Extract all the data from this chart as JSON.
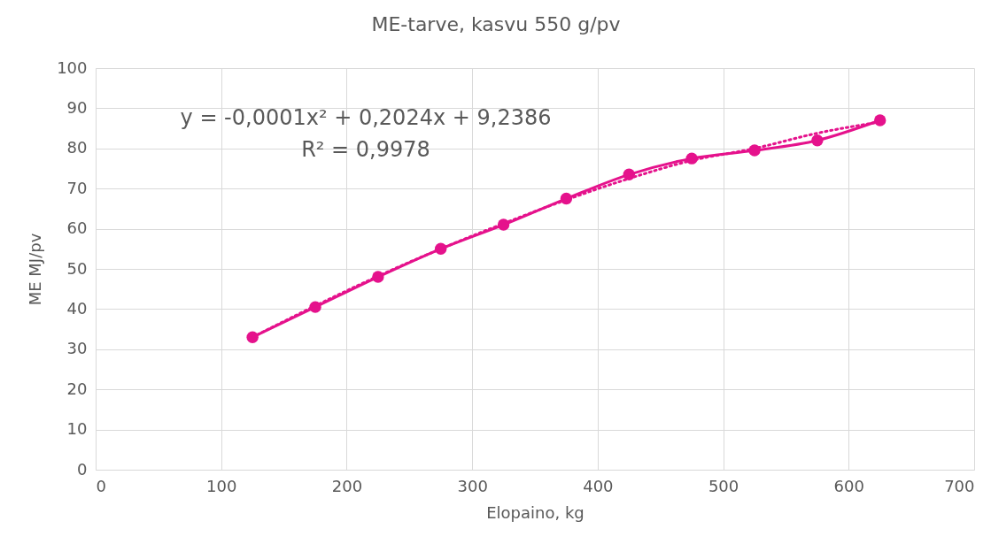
{
  "chart_data": {
    "type": "line",
    "title": "ME-tarve, kasvu 550 g/pv",
    "xlabel": "Elopaino, kg",
    "ylabel": "ME MJ/pv",
    "x": [
      125,
      175,
      225,
      275,
      325,
      375,
      425,
      475,
      525,
      575,
      625
    ],
    "series": [
      {
        "color": "#e5128c",
        "values": [
          33,
          40.5,
          48,
          55,
          61,
          67.5,
          73.5,
          77.5,
          79.5,
          82,
          87
        ],
        "marker": "circle",
        "line_style": "solid"
      },
      {
        "type": "line",
        "color": "#e5128c",
        "x": [
          125,
          175,
          225,
          275,
          325,
          375,
          425,
          475,
          525,
          575,
          625
        ],
        "values": [
          33,
          40.8,
          48.2,
          55,
          61.3,
          67.2,
          72.5,
          77,
          80,
          83.8,
          86.6
        ],
        "marker": "none",
        "line_style": "dotted"
      }
    ],
    "annotations": [
      "y = -0,0001x² + 0,2024x + 9,2386",
      "R² = 0,9978"
    ],
    "xlim": [
      0,
      700
    ],
    "xticks": [
      0,
      100,
      200,
      300,
      400,
      500,
      600,
      700
    ],
    "ylim": [
      0,
      100
    ],
    "yticks": [
      0,
      10,
      20,
      30,
      40,
      50,
      60,
      70,
      80,
      90,
      100
    ],
    "grid": true
  }
}
